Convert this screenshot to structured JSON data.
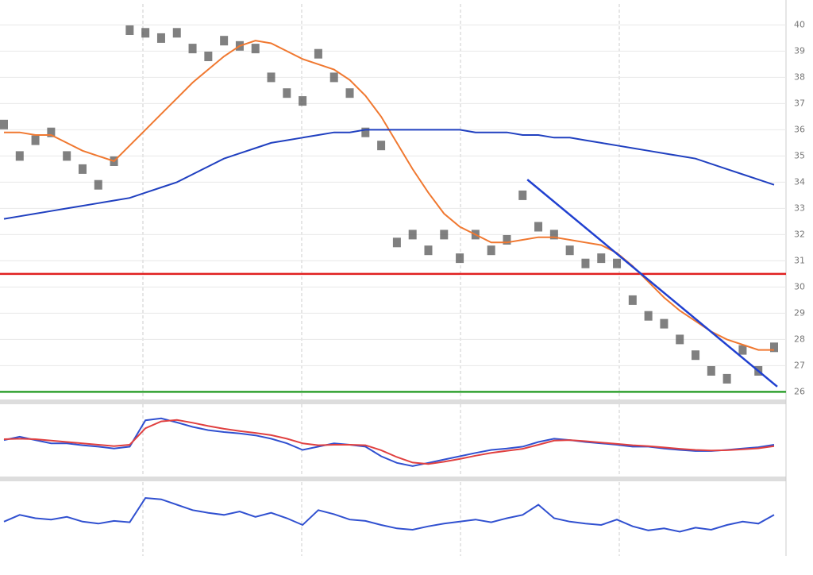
{
  "chart_data": [
    {
      "type": "price",
      "grid": true,
      "ylim": [
        25.8,
        40.8
      ],
      "yticks": [
        26,
        27,
        28,
        29,
        30,
        31,
        32,
        33,
        34,
        35,
        36,
        37,
        38,
        39,
        40
      ],
      "series": [
        {
          "color": "#555555",
          "values": [
            36.2,
            35.0,
            35.6,
            35.9,
            35.0,
            34.5,
            33.9,
            34.8,
            39.8,
            39.7,
            39.5,
            39.7,
            39.1,
            38.8,
            39.4,
            39.2,
            39.1,
            38.0,
            37.4,
            37.1,
            38.9,
            38.0,
            37.4,
            35.9,
            35.4,
            31.7,
            32.0,
            31.4,
            32.0,
            31.1,
            32.0,
            31.4,
            31.8,
            33.5,
            32.3,
            32.0,
            31.4,
            30.9,
            31.1,
            30.9,
            29.5,
            28.9,
            28.6,
            28.0,
            27.4,
            26.8,
            26.5,
            27.6,
            26.8,
            27.7
          ]
        },
        {
          "color": "#f07830",
          "values": [
            35.9,
            35.9,
            35.8,
            35.8,
            35.5,
            35.2,
            35.0,
            34.8,
            35.4,
            36.0,
            36.6,
            37.2,
            37.8,
            38.3,
            38.8,
            39.2,
            39.4,
            39.3,
            39.0,
            38.7,
            38.5,
            38.3,
            37.9,
            37.3,
            36.5,
            35.5,
            34.5,
            33.6,
            32.8,
            32.3,
            32.0,
            31.7,
            31.7,
            31.8,
            31.9,
            31.9,
            31.8,
            31.7,
            31.6,
            31.3,
            30.8,
            30.2,
            29.6,
            29.1,
            28.7,
            28.3,
            28.0,
            27.8,
            27.6,
            27.6
          ]
        },
        {
          "color": "#2040c0",
          "values": [
            32.6,
            32.7,
            32.8,
            32.9,
            33.0,
            33.1,
            33.2,
            33.3,
            33.4,
            33.6,
            33.8,
            34.0,
            34.3,
            34.6,
            34.9,
            35.1,
            35.3,
            35.5,
            35.6,
            35.7,
            35.8,
            35.9,
            35.9,
            36.0,
            36.0,
            36.0,
            36.0,
            36.0,
            36.0,
            36.0,
            35.9,
            35.9,
            35.9,
            35.8,
            35.8,
            35.7,
            35.7,
            35.6,
            35.5,
            35.4,
            35.3,
            35.2,
            35.1,
            35.0,
            34.9,
            34.7,
            34.5,
            34.3,
            34.1,
            33.9
          ]
        }
      ],
      "hlines": [
        {
          "value": 30.5,
          "color": "#e02020"
        },
        {
          "value": 26.0,
          "color": "#30a030"
        }
      ],
      "trendline": {
        "x": [
          33.3,
          49.2
        ],
        "values": [
          34.1,
          26.2
        ],
        "color": "#2040d0"
      }
    },
    {
      "type": "indicator",
      "ylim": [
        -1.2,
        1.2
      ],
      "series": [
        {
          "color": "#3050d0",
          "values": [
            0.07,
            0.19,
            0.07,
            -0.05,
            -0.05,
            -0.12,
            -0.17,
            -0.24,
            -0.17,
            0.79,
            0.86,
            0.71,
            0.55,
            0.43,
            0.36,
            0.31,
            0.24,
            0.12,
            -0.05,
            -0.29,
            -0.17,
            -0.05,
            -0.1,
            -0.17,
            -0.52,
            -0.76,
            -0.88,
            -0.76,
            -0.64,
            -0.52,
            -0.4,
            -0.29,
            -0.24,
            -0.17,
            0.0,
            0.12,
            0.07,
            0.0,
            -0.05,
            -0.1,
            -0.17,
            -0.17,
            -0.24,
            -0.29,
            -0.33,
            -0.33,
            -0.29,
            -0.24,
            -0.19,
            -0.1
          ]
        },
        {
          "color": "#e04040",
          "values": [
            0.1,
            0.12,
            0.1,
            0.05,
            0.0,
            -0.05,
            -0.1,
            -0.15,
            -0.1,
            0.5,
            0.75,
            0.8,
            0.7,
            0.58,
            0.48,
            0.4,
            0.33,
            0.25,
            0.12,
            -0.05,
            -0.12,
            -0.1,
            -0.1,
            -0.12,
            -0.3,
            -0.55,
            -0.75,
            -0.8,
            -0.72,
            -0.62,
            -0.5,
            -0.4,
            -0.32,
            -0.25,
            -0.1,
            0.05,
            0.07,
            0.03,
            -0.02,
            -0.07,
            -0.12,
            -0.15,
            -0.2,
            -0.25,
            -0.29,
            -0.31,
            -0.3,
            -0.27,
            -0.23,
            -0.15
          ]
        }
      ]
    },
    {
      "type": "indicator",
      "ylim": [
        0,
        100
      ],
      "series": [
        {
          "color": "#3050d0",
          "values": [
            45,
            55,
            50,
            48,
            52,
            45,
            42,
            46,
            44,
            80,
            78,
            70,
            62,
            58,
            55,
            60,
            52,
            58,
            50,
            40,
            62,
            56,
            48,
            46,
            40,
            35,
            33,
            38,
            42,
            45,
            48,
            44,
            50,
            55,
            70,
            50,
            45,
            42,
            40,
            48,
            38,
            32,
            35,
            30,
            36,
            33,
            40,
            45,
            42,
            55
          ]
        }
      ]
    }
  ]
}
